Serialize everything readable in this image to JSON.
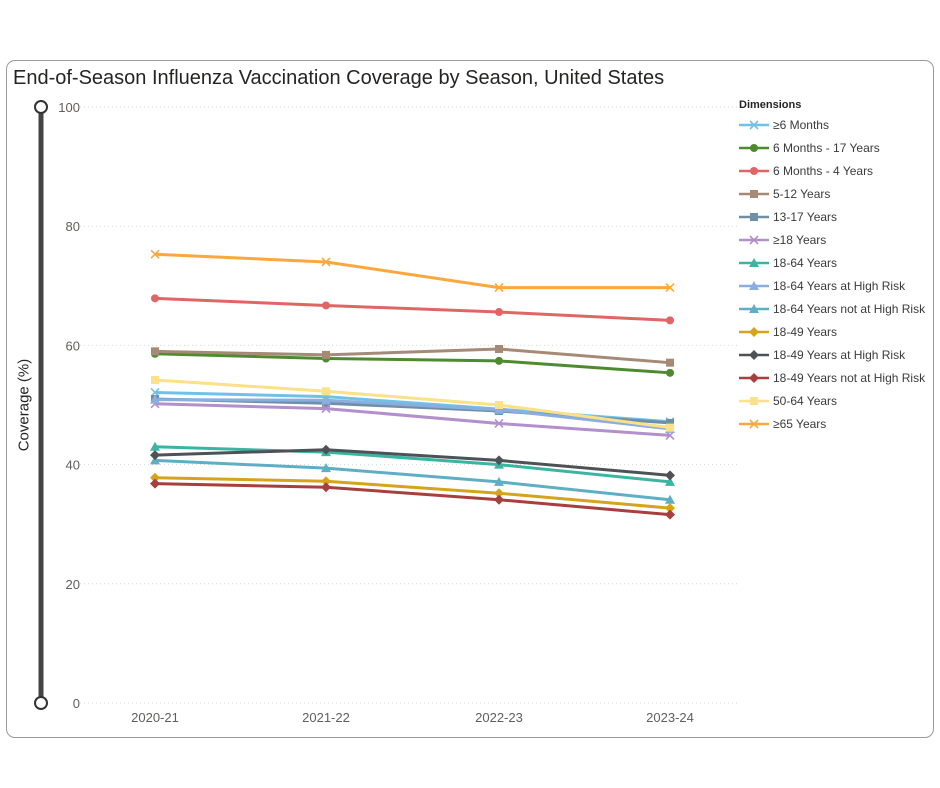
{
  "chart_data": {
    "type": "line",
    "title": "End-of-Season Influenza Vaccination Coverage by Season, United States",
    "xlabel": "",
    "ylabel": "Coverage (%)",
    "ylim": [
      0,
      100
    ],
    "yticks": [
      0,
      20,
      40,
      60,
      80,
      100
    ],
    "grid": true,
    "legend_title": "Dimensions",
    "legend_position": "right",
    "categories": [
      "2020-21",
      "2021-22",
      "2022-23",
      "2023-24"
    ],
    "series": [
      {
        "name": "≥6 Months",
        "color": "#6fc2e6",
        "marker": "x",
        "values": [
          52.1,
          51.4,
          49.3,
          47.2
        ]
      },
      {
        "name": "6 Months - 17 Years",
        "color": "#4e8a2e",
        "marker": "circle",
        "values": [
          58.6,
          57.8,
          57.4,
          55.4
        ]
      },
      {
        "name": "6 Months - 4 Years",
        "color": "#e06565",
        "marker": "circle",
        "values": [
          67.9,
          66.7,
          65.6,
          64.2
        ]
      },
      {
        "name": "5-12 Years",
        "color": "#a58a76",
        "marker": "square",
        "values": [
          59.0,
          58.4,
          59.4,
          57.1
        ]
      },
      {
        "name": "13-17 Years",
        "color": "#6f8fa6",
        "marker": "square",
        "values": [
          51.0,
          50.3,
          49.0,
          47.0
        ]
      },
      {
        "name": "≥18 Years",
        "color": "#b38fcb",
        "marker": "x",
        "values": [
          50.2,
          49.4,
          46.9,
          44.9
        ]
      },
      {
        "name": "18-64 Years",
        "color": "#3bb5a2",
        "marker": "triangle",
        "values": [
          43.0,
          42.1,
          40.0,
          37.1
        ]
      },
      {
        "name": "18-64 Years at High Risk",
        "color": "#8aaee0",
        "marker": "triangle",
        "values": [
          50.9,
          50.8,
          49.2,
          46.0
        ]
      },
      {
        "name": "18-64 Years not at High Risk",
        "color": "#5eaec4",
        "marker": "triangle",
        "values": [
          40.7,
          39.4,
          37.1,
          34.1
        ]
      },
      {
        "name": "18-49 Years",
        "color": "#d6a31a",
        "marker": "diamond",
        "values": [
          37.8,
          37.2,
          35.2,
          32.7
        ]
      },
      {
        "name": "18-49 Years at High Risk",
        "color": "#4d5257",
        "marker": "diamond",
        "values": [
          41.6,
          42.5,
          40.7,
          38.2
        ]
      },
      {
        "name": "18-49 Years not at High Risk",
        "color": "#a83e3e",
        "marker": "diamond",
        "values": [
          36.8,
          36.2,
          34.1,
          31.6
        ]
      },
      {
        "name": "50-64 Years",
        "color": "#fae18a",
        "marker": "square",
        "values": [
          54.2,
          52.3,
          50.0,
          46.2
        ]
      },
      {
        "name": "≥65 Years",
        "color": "#faa83e",
        "marker": "x",
        "values": [
          75.3,
          74.0,
          69.7,
          69.7
        ]
      }
    ]
  }
}
